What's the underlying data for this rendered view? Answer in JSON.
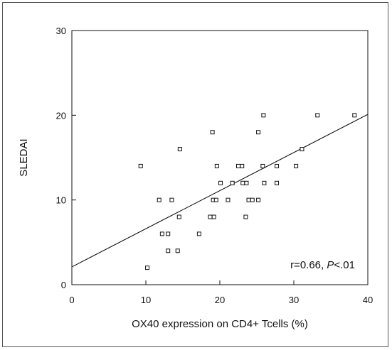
{
  "chart_data": {
    "type": "scatter",
    "title": "",
    "xlabel": "OX40 expression on CD4+ Tcells (%)",
    "ylabel": "SLEDAI",
    "xlim": [
      0,
      40
    ],
    "ylim": [
      0,
      30
    ],
    "x_ticks": [
      0,
      10,
      20,
      30,
      40
    ],
    "y_ticks": [
      0,
      10,
      20,
      30
    ],
    "x_tick_labels": [
      "0",
      "10",
      "20",
      "30",
      "40"
    ],
    "y_tick_labels": [
      "0",
      "10",
      "20",
      "30"
    ],
    "grid": false,
    "legend": "none",
    "marker": "open-square",
    "annotation": {
      "prefix": "r=0.66, ",
      "p_symbol": "P",
      "suffix": "<.01"
    },
    "regression_line": {
      "x": [
        0,
        40
      ],
      "y": [
        2.1,
        20.1
      ]
    },
    "points": [
      {
        "x": 9.3,
        "y": 14
      },
      {
        "x": 10.2,
        "y": 2
      },
      {
        "x": 11.8,
        "y": 10
      },
      {
        "x": 12.2,
        "y": 6
      },
      {
        "x": 13.0,
        "y": 6
      },
      {
        "x": 13.0,
        "y": 4
      },
      {
        "x": 13.5,
        "y": 10
      },
      {
        "x": 14.3,
        "y": 4
      },
      {
        "x": 14.5,
        "y": 8
      },
      {
        "x": 14.6,
        "y": 16
      },
      {
        "x": 17.2,
        "y": 6
      },
      {
        "x": 18.7,
        "y": 8
      },
      {
        "x": 19.0,
        "y": 18
      },
      {
        "x": 19.1,
        "y": 10
      },
      {
        "x": 19.2,
        "y": 8
      },
      {
        "x": 19.5,
        "y": 10
      },
      {
        "x": 19.6,
        "y": 14
      },
      {
        "x": 20.1,
        "y": 12
      },
      {
        "x": 21.1,
        "y": 10
      },
      {
        "x": 21.7,
        "y": 12
      },
      {
        "x": 22.5,
        "y": 14
      },
      {
        "x": 23.0,
        "y": 14
      },
      {
        "x": 23.1,
        "y": 12
      },
      {
        "x": 23.5,
        "y": 8
      },
      {
        "x": 23.6,
        "y": 12
      },
      {
        "x": 23.9,
        "y": 10
      },
      {
        "x": 24.4,
        "y": 10
      },
      {
        "x": 25.2,
        "y": 10
      },
      {
        "x": 25.2,
        "y": 18
      },
      {
        "x": 25.8,
        "y": 14
      },
      {
        "x": 25.9,
        "y": 20
      },
      {
        "x": 26.0,
        "y": 12
      },
      {
        "x": 27.7,
        "y": 14
      },
      {
        "x": 27.7,
        "y": 12
      },
      {
        "x": 30.3,
        "y": 14
      },
      {
        "x": 31.1,
        "y": 16
      },
      {
        "x": 33.2,
        "y": 20
      },
      {
        "x": 38.2,
        "y": 20
      }
    ]
  }
}
